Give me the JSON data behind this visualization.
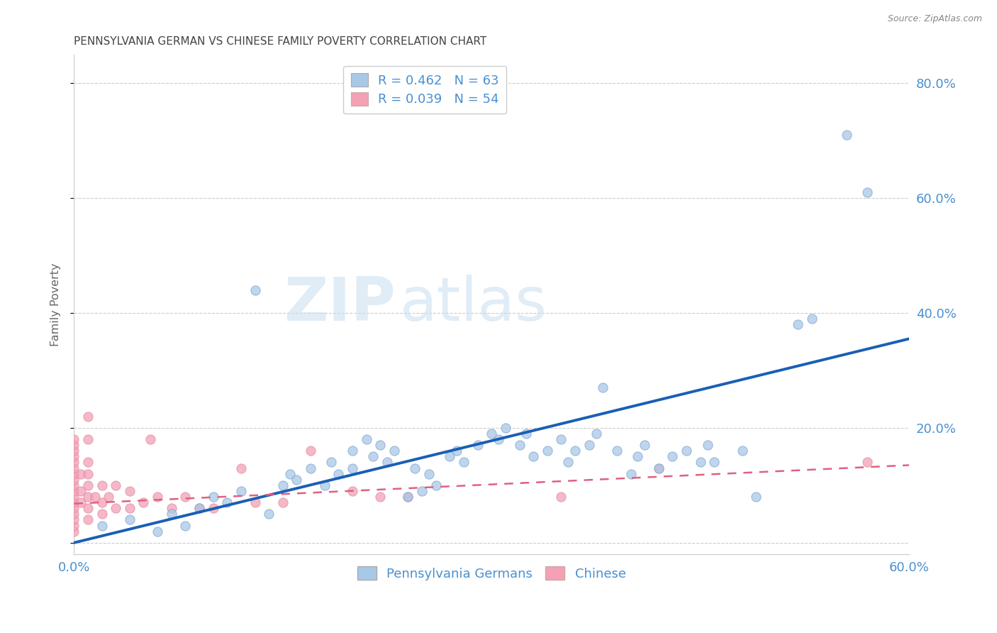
{
  "title": "PENNSYLVANIA GERMAN VS CHINESE FAMILY POVERTY CORRELATION CHART",
  "source": "Source: ZipAtlas.com",
  "ylabel": "Family Poverty",
  "legend_label1": "Pennsylvania Germans",
  "legend_label2": "Chinese",
  "r1": 0.462,
  "n1": 63,
  "r2": 0.039,
  "n2": 54,
  "color_blue": "#a8c8e8",
  "color_blue_line": "#1a5fb4",
  "color_pink": "#f4a0b5",
  "color_pink_line": "#e06080",
  "color_text": "#4a90d0",
  "xlim": [
    0.0,
    0.6
  ],
  "ylim": [
    -0.02,
    0.85
  ],
  "ytick_vals": [
    0.0,
    0.2,
    0.4,
    0.6,
    0.8
  ],
  "blue_line_x0": 0.0,
  "blue_line_y0": 0.0,
  "blue_line_x1": 0.6,
  "blue_line_y1": 0.355,
  "pink_line_x0": 0.0,
  "pink_line_y0": 0.068,
  "pink_line_x1": 0.6,
  "pink_line_y1": 0.135,
  "blue_x": [
    0.02,
    0.04,
    0.06,
    0.07,
    0.08,
    0.09,
    0.1,
    0.11,
    0.12,
    0.13,
    0.14,
    0.15,
    0.155,
    0.16,
    0.17,
    0.18,
    0.185,
    0.19,
    0.2,
    0.2,
    0.21,
    0.215,
    0.22,
    0.225,
    0.23,
    0.24,
    0.245,
    0.25,
    0.255,
    0.26,
    0.27,
    0.275,
    0.28,
    0.29,
    0.3,
    0.305,
    0.31,
    0.32,
    0.325,
    0.33,
    0.34,
    0.35,
    0.355,
    0.36,
    0.37,
    0.375,
    0.38,
    0.39,
    0.4,
    0.405,
    0.41,
    0.42,
    0.43,
    0.44,
    0.45,
    0.455,
    0.46,
    0.48,
    0.49,
    0.52,
    0.53,
    0.555,
    0.57
  ],
  "blue_y": [
    0.03,
    0.04,
    0.02,
    0.05,
    0.03,
    0.06,
    0.08,
    0.07,
    0.09,
    0.44,
    0.05,
    0.1,
    0.12,
    0.11,
    0.13,
    0.1,
    0.14,
    0.12,
    0.16,
    0.13,
    0.18,
    0.15,
    0.17,
    0.14,
    0.16,
    0.08,
    0.13,
    0.09,
    0.12,
    0.1,
    0.15,
    0.16,
    0.14,
    0.17,
    0.19,
    0.18,
    0.2,
    0.17,
    0.19,
    0.15,
    0.16,
    0.18,
    0.14,
    0.16,
    0.17,
    0.19,
    0.27,
    0.16,
    0.12,
    0.15,
    0.17,
    0.13,
    0.15,
    0.16,
    0.14,
    0.17,
    0.14,
    0.16,
    0.08,
    0.38,
    0.39,
    0.71,
    0.61
  ],
  "pink_x": [
    0.0,
    0.0,
    0.0,
    0.0,
    0.0,
    0.0,
    0.0,
    0.0,
    0.0,
    0.0,
    0.0,
    0.0,
    0.0,
    0.0,
    0.0,
    0.0,
    0.0,
    0.005,
    0.005,
    0.005,
    0.01,
    0.01,
    0.01,
    0.01,
    0.01,
    0.01,
    0.01,
    0.01,
    0.015,
    0.02,
    0.02,
    0.02,
    0.025,
    0.03,
    0.03,
    0.04,
    0.04,
    0.05,
    0.055,
    0.06,
    0.07,
    0.08,
    0.09,
    0.1,
    0.12,
    0.13,
    0.15,
    0.17,
    0.2,
    0.22,
    0.24,
    0.35,
    0.42,
    0.57
  ],
  "pink_y": [
    0.02,
    0.03,
    0.04,
    0.05,
    0.06,
    0.07,
    0.08,
    0.09,
    0.1,
    0.11,
    0.12,
    0.13,
    0.14,
    0.15,
    0.16,
    0.17,
    0.18,
    0.07,
    0.09,
    0.12,
    0.04,
    0.06,
    0.08,
    0.1,
    0.12,
    0.14,
    0.18,
    0.22,
    0.08,
    0.05,
    0.07,
    0.1,
    0.08,
    0.06,
    0.1,
    0.06,
    0.09,
    0.07,
    0.18,
    0.08,
    0.06,
    0.08,
    0.06,
    0.06,
    0.13,
    0.07,
    0.07,
    0.16,
    0.09,
    0.08,
    0.08,
    0.08,
    0.13,
    0.14
  ]
}
